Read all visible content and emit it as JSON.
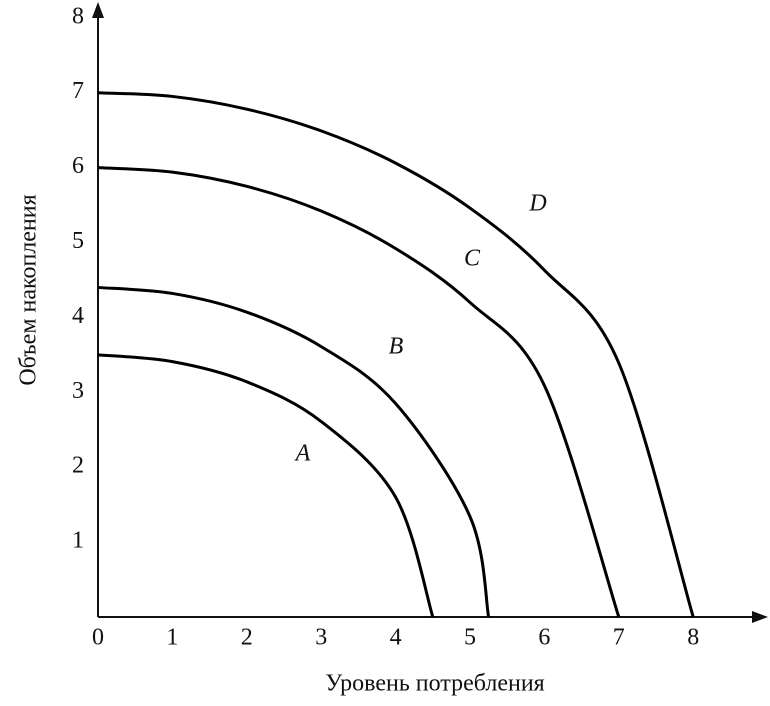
{
  "chart_data": {
    "type": "line",
    "x_label": "Уровень потребления",
    "y_label": "Объем накопления",
    "xlim": [
      0,
      9
    ],
    "ylim": [
      0,
      8.2
    ],
    "xticks": [
      0,
      1,
      2,
      3,
      4,
      5,
      6,
      7,
      8
    ],
    "yticks": [
      1,
      2,
      3,
      4,
      5,
      6,
      7,
      8
    ],
    "grid": false,
    "series": [
      {
        "name": "A",
        "color": "#000000",
        "x": [
          0,
          1,
          2,
          3,
          4,
          4.5
        ],
        "values": [
          3.5,
          3.41,
          3.14,
          2.61,
          1.6,
          0
        ]
      },
      {
        "name": "B",
        "color": "#000000",
        "x": [
          0,
          1,
          2,
          3,
          4,
          5,
          5.25
        ],
        "values": [
          4.4,
          4.32,
          4.07,
          3.61,
          2.85,
          1.34,
          0
        ]
      },
      {
        "name": "C",
        "color": "#000000",
        "x": [
          0,
          1,
          2,
          3,
          4,
          5,
          6,
          7
        ],
        "values": [
          6,
          5.94,
          5.75,
          5.42,
          4.92,
          4.2,
          3.09,
          0
        ]
      },
      {
        "name": "D",
        "color": "#000000",
        "x": [
          0,
          1,
          2,
          3,
          4,
          5,
          6,
          7,
          8
        ],
        "values": [
          7,
          6.95,
          6.78,
          6.49,
          6.06,
          5.46,
          4.63,
          3.39,
          0
        ]
      }
    ]
  }
}
